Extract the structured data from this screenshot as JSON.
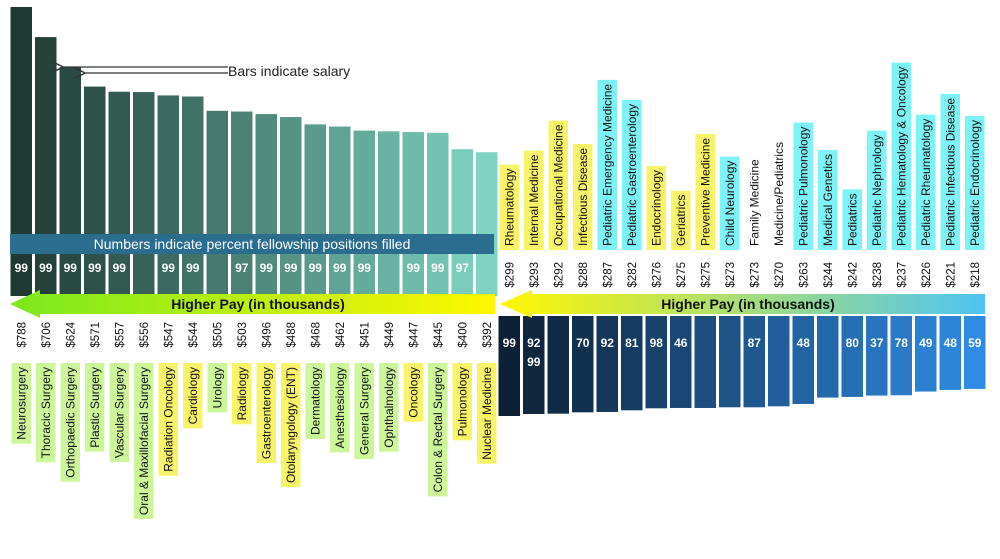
{
  "annotations": {
    "bars_note": "Bars indicate salary",
    "numbers_note": "Numbers indicate percent fellowship positions filled",
    "left_arrow_label": "Higher Pay (in thousands)",
    "right_arrow_label": "Higher Pay (in thousands)"
  },
  "colors": {
    "left_bar_dark": "#1f3a33",
    "left_bar_light": "#7ed3c1",
    "right_bar_dark": "#0d2035",
    "right_bar_light": "#2f8be3",
    "label_yellow": "#f7f46a",
    "label_green": "#cdf59a",
    "label_cyan": "#7ef3f5",
    "arrow_left_from": "#7be81e",
    "arrow_left_to": "#fff700",
    "arrow_right_from": "#fff700",
    "arrow_right_to": "#4fc4f2",
    "banner": "#2b6d8f"
  },
  "chart_data": [
    {
      "type": "bar",
      "title": "",
      "xlabel": "",
      "ylabel": "",
      "value_unit": "thousand USD",
      "categories": [
        "Neurosurgery",
        "Thoracic Surgery",
        "Orthopaedic Surgery",
        "Plastic Surgery",
        "Vascular Surgery",
        "Oral & Maxillofacial Surgery",
        "Radiation Oncology",
        "Cardiology",
        "Urology",
        "Radiology",
        "Gastroenterology",
        "Otolaryngology (ENT)",
        "Dermatology",
        "Anesthesiology",
        "General Surgery",
        "Ophthalmology",
        "Oncology",
        "Colon & Rectal Surgery",
        "Pulmonology",
        "Nuclear Medicine"
      ],
      "values": [
        788,
        706,
        624,
        571,
        557,
        556,
        547,
        544,
        505,
        503,
        496,
        488,
        468,
        462,
        451,
        449,
        447,
        445,
        400,
        392
      ],
      "value_labels": [
        "$788",
        "$706",
        "$624",
        "$571",
        "$557",
        "$556",
        "$547",
        "$544",
        "$505",
        "$503",
        "$496",
        "$488",
        "$468",
        "$462",
        "$451",
        "$449",
        "$447",
        "$445",
        "$400",
        "$392"
      ],
      "percent_filled": [
        "99",
        "99",
        "99",
        "99",
        "99",
        "",
        "99",
        "99",
        "",
        "97",
        "99",
        "99",
        "99",
        "99",
        "99",
        "",
        "99",
        "99",
        "97",
        ""
      ],
      "label_colors": [
        "green",
        "green",
        "green",
        "green",
        "green",
        "green",
        "yellow",
        "yellow",
        "green",
        "yellow",
        "yellow",
        "yellow",
        "green",
        "green",
        "green",
        "green",
        "yellow",
        "green",
        "yellow",
        "yellow"
      ]
    },
    {
      "type": "bar",
      "title": "",
      "xlabel": "",
      "ylabel": "",
      "value_unit": "thousand USD",
      "categories": [
        "Rheumatology",
        "Internal Medicine",
        "Occupational Medicine",
        "Infectious Disease",
        "Pediatric Emergency Medicine",
        "Pediatric Gastroenterology",
        "Endocrinology",
        "Geriatrics",
        "Preventive Medicine",
        "Child Neurology",
        "Family Medicine",
        "Medicine/Pediatrics",
        "Pediatric Pulmonology",
        "Medical Genetics",
        "Pediatrics",
        "Pediatric Nephrology",
        "Pediatric Hematology & Oncology",
        "Pediatric Rheumatology",
        "Pediatric Infectious Disease",
        "Pediatric Endocrinology"
      ],
      "values": [
        299,
        293,
        292,
        288,
        287,
        282,
        276,
        275,
        275,
        273,
        273,
        270,
        263,
        244,
        242,
        238,
        237,
        226,
        221,
        218
      ],
      "value_labels": [
        "$299",
        "$293",
        "$292",
        "$288",
        "$287",
        "$282",
        "$276",
        "$275",
        "$275",
        "$273",
        "$273",
        "$270",
        "$263",
        "$244",
        "$242",
        "$238",
        "$237",
        "$226",
        "$221",
        "$218"
      ],
      "percent_filled": [
        "99",
        "92",
        "",
        "70",
        "92",
        "81",
        "98",
        "46",
        "",
        "",
        "87",
        "",
        "48",
        "",
        "80",
        "37",
        "78",
        "49",
        "48",
        "59"
      ],
      "percent_filled_extra": [
        "",
        "99",
        "",
        "",
        "",
        "",
        "",
        "",
        "",
        "",
        "",
        "",
        "",
        "",
        "",
        "",
        "",
        "",
        "",
        ""
      ],
      "label_colors": [
        "yellow",
        "yellow",
        "yellow",
        "yellow",
        "cyan",
        "cyan",
        "yellow",
        "yellow",
        "yellow",
        "cyan",
        "none",
        "none",
        "cyan",
        "cyan",
        "cyan",
        "cyan",
        "cyan",
        "cyan",
        "cyan",
        "cyan"
      ]
    }
  ]
}
